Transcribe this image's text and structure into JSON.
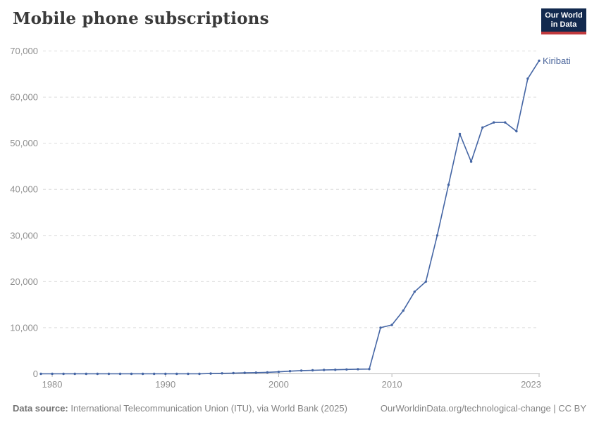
{
  "header": {
    "logo": {
      "line1": "Our World",
      "line2": "in Data",
      "bg_color": "#12294e",
      "accent_color": "#c0393d"
    }
  },
  "chart_data": {
    "type": "line",
    "title": "Mobile phone subscriptions",
    "x": [
      1979,
      1980,
      1981,
      1982,
      1983,
      1984,
      1985,
      1986,
      1987,
      1988,
      1989,
      1990,
      1991,
      1992,
      1993,
      1994,
      1995,
      1996,
      1997,
      1998,
      1999,
      2000,
      2001,
      2002,
      2003,
      2004,
      2005,
      2006,
      2007,
      2008,
      2009,
      2010,
      2011,
      2012,
      2013,
      2014,
      2015,
      2016,
      2017,
      2018,
      2019,
      2020,
      2021,
      2022,
      2023
    ],
    "series": [
      {
        "name": "Kiribati",
        "values": [
          0,
          0,
          0,
          0,
          0,
          0,
          0,
          0,
          0,
          0,
          0,
          0,
          0,
          0,
          0,
          60,
          100,
          150,
          210,
          260,
          320,
          430,
          580,
          700,
          760,
          840,
          890,
          950,
          1000,
          1040,
          10000,
          10600,
          13700,
          17800,
          20000,
          30000,
          41000,
          52000,
          46000,
          53400,
          54500,
          54500,
          52600,
          64000,
          67900
        ]
      }
    ],
    "xlabel": "",
    "ylabel": "",
    "xlim": [
      1979,
      2023
    ],
    "ylim": [
      0,
      70000
    ],
    "x_ticks": [
      1980,
      1990,
      2000,
      2010,
      2023
    ],
    "y_ticks": [
      0,
      10000,
      20000,
      30000,
      40000,
      50000,
      60000,
      70000
    ],
    "grid": "horizontal-dashed",
    "legend_position": "end-of-line-label",
    "colors": {
      "line": "#4465a4",
      "series_label": "#4c669c",
      "tick_label": "#909090",
      "grid": "#dcdcdc",
      "axis": "#b8b8b8"
    }
  },
  "footer": {
    "source_label": "Data source:",
    "source_text": "International Telecommunication Union (ITU), via World Bank (2025)",
    "credit": "OurWorldinData.org/technological-change | CC BY"
  }
}
